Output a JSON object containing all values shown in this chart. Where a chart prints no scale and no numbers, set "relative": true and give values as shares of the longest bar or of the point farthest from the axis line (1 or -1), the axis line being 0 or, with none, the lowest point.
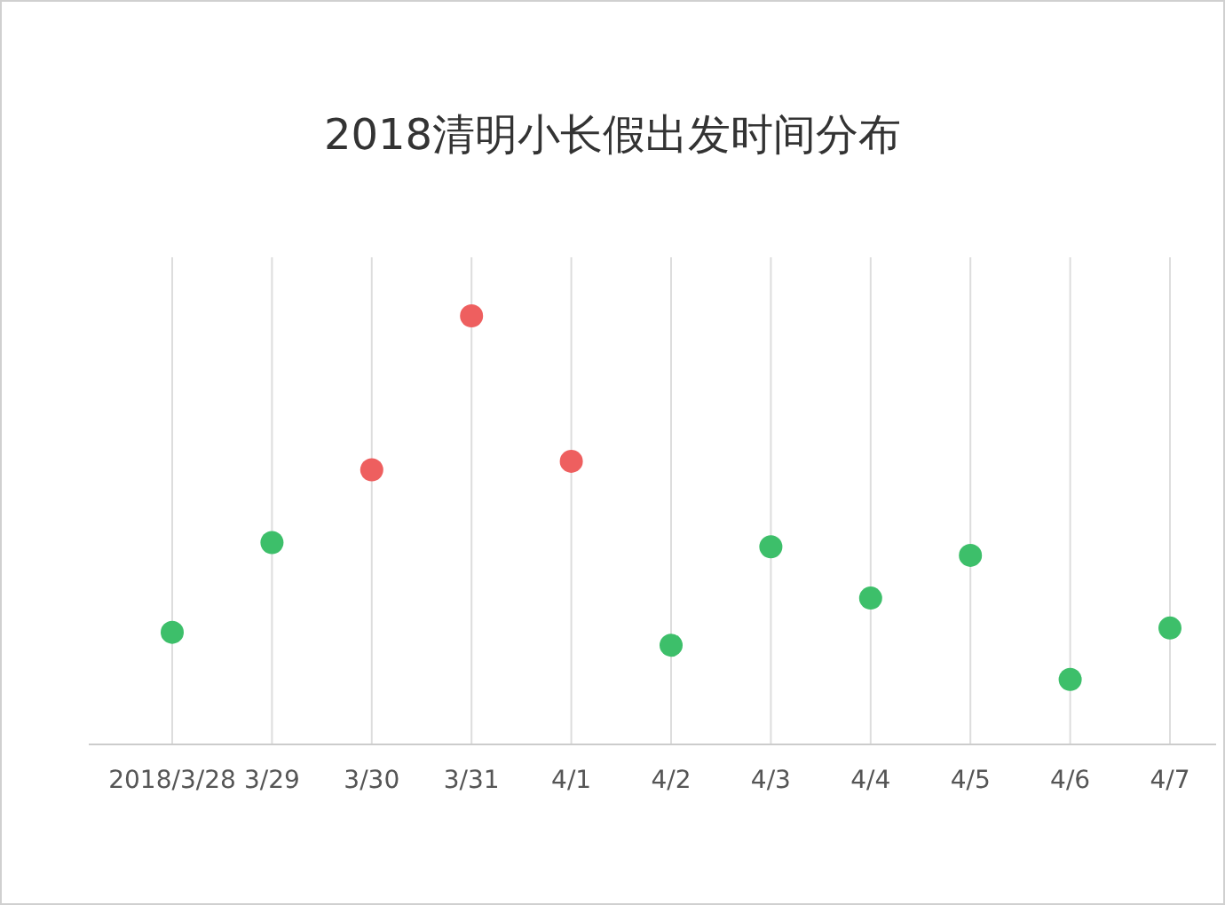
{
  "chart_data": {
    "type": "scatter",
    "title": "2018清明小长假出发时间分布",
    "relative": true,
    "grid": "x",
    "marker": "circle",
    "categories": [
      "2018/3/28",
      "3/29",
      "3/30",
      "3/31",
      "4/1",
      "4/2",
      "4/3",
      "4/4",
      "4/5",
      "4/6",
      "4/7"
    ],
    "values": [
      0.26,
      0.47,
      0.64,
      1,
      0.66,
      0.23,
      0.46,
      0.34,
      0.44,
      0.15,
      0.27
    ],
    "colors": [
      "#3dbf6a",
      "#3dbf6a",
      "#ee5f5f",
      "#ee5f5f",
      "#ee5f5f",
      "#3dbf6a",
      "#3dbf6a",
      "#3dbf6a",
      "#3dbf6a",
      "#3dbf6a",
      "#3dbf6a"
    ]
  }
}
